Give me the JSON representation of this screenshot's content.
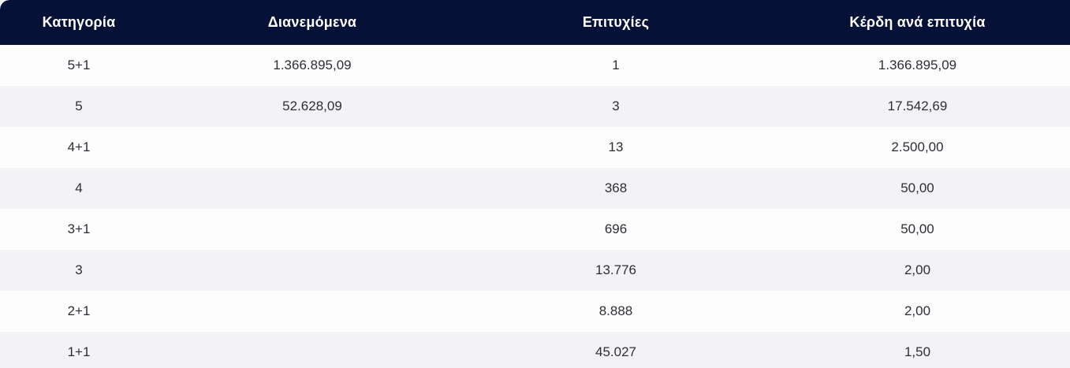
{
  "colors": {
    "header_background": "#061137",
    "header_text": "#ffffff",
    "row_background": "#fdfdfe",
    "row_alt_background": "#f3f3f5",
    "cell_text": "#2e2e36"
  },
  "table": {
    "columns": [
      "Κατηγορία",
      "Διανεμόμενα",
      "Επιτυχίες",
      "Κέρδη ανά επιτυχία"
    ],
    "rows": [
      {
        "category": "5+1",
        "distributed": "1.366.895,09",
        "winners": "1",
        "winnings_per_winner": "1.366.895,09"
      },
      {
        "category": "5",
        "distributed": "52.628,09",
        "winners": "3",
        "winnings_per_winner": "17.542,69"
      },
      {
        "category": "4+1",
        "distributed": "",
        "winners": "13",
        "winnings_per_winner": "2.500,00"
      },
      {
        "category": "4",
        "distributed": "",
        "winners": "368",
        "winnings_per_winner": "50,00"
      },
      {
        "category": "3+1",
        "distributed": "",
        "winners": "696",
        "winnings_per_winner": "50,00"
      },
      {
        "category": "3",
        "distributed": "",
        "winners": "13.776",
        "winnings_per_winner": "2,00"
      },
      {
        "category": "2+1",
        "distributed": "",
        "winners": "8.888",
        "winnings_per_winner": "2,00"
      },
      {
        "category": "1+1",
        "distributed": "",
        "winners": "45.027",
        "winnings_per_winner": "1,50"
      }
    ]
  },
  "chart_data": {
    "type": "table",
    "title": "",
    "columns": [
      "Κατηγορία",
      "Διανεμόμενα",
      "Επιτυχίες",
      "Κέρδη ανά επιτυχία"
    ],
    "rows": [
      [
        "5+1",
        "1.366.895,09",
        "1",
        "1.366.895,09"
      ],
      [
        "5",
        "52.628,09",
        "3",
        "17.542,69"
      ],
      [
        "4+1",
        "",
        "13",
        "2.500,00"
      ],
      [
        "4",
        "",
        "368",
        "50,00"
      ],
      [
        "3+1",
        "",
        "696",
        "50,00"
      ],
      [
        "3",
        "",
        "13.776",
        "2,00"
      ],
      [
        "2+1",
        "",
        "8.888",
        "2,00"
      ],
      [
        "1+1",
        "",
        "45.027",
        "1,50"
      ]
    ]
  }
}
